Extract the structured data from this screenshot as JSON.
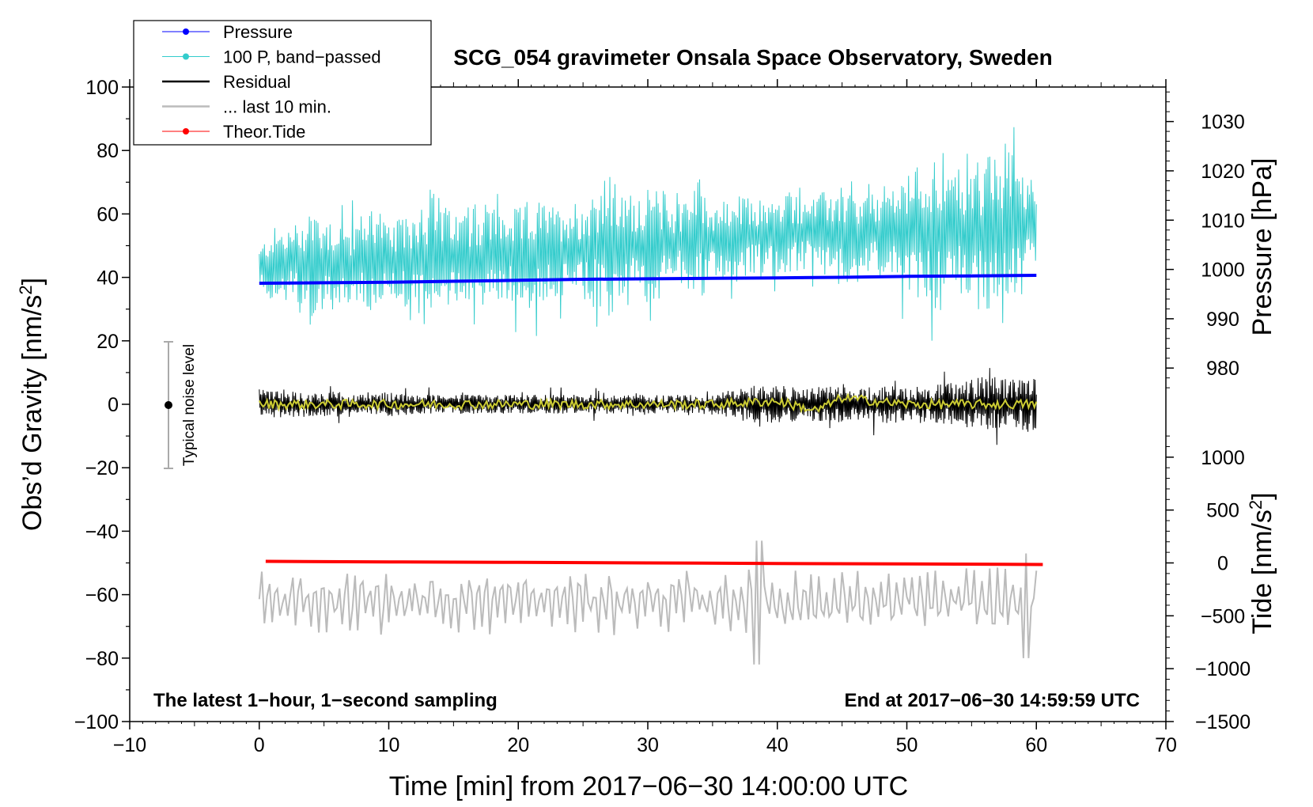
{
  "chart_data": {
    "type": "line",
    "title": "SCG_054 gravimeter Onsala Space Observatory, Sweden",
    "xlabel": "Time [min] from 2017−06−30 14:00:00 UTC",
    "ylabel": "Obs’d Gravity [nm/s",
    "ylabel_sup": "2",
    "ylabel_end": "]",
    "y2label": "Pressure [hPa]",
    "y3label": "Tide [nm/s",
    "y3label_sup": "2",
    "y3label_end": "]",
    "note_left": "The latest 1−hour, 1−second sampling",
    "note_right": "End at 2017−06−30 14:59:59 UTC",
    "noise_label": "Typical noise level",
    "noise_range": [
      -20,
      20
    ],
    "xlim": [
      -10,
      70
    ],
    "ylim": [
      -100,
      100
    ],
    "y2lim": [
      1037,
      908.3
    ],
    "y3lim": [
      -1500,
      4500
    ],
    "x_ticks": [
      -10,
      0,
      10,
      20,
      30,
      40,
      50,
      60,
      70
    ],
    "x_tick_labels": [
      "−10",
      "0",
      "10",
      "20",
      "30",
      "40",
      "50",
      "60",
      "70"
    ],
    "y_ticks": [
      100,
      80,
      60,
      40,
      20,
      0,
      -20,
      -40,
      -60,
      -80,
      -100
    ],
    "y_tick_labels": [
      "100",
      "80",
      "60",
      "40",
      "20",
      "0",
      "−20",
      "−40",
      "−60",
      "−80",
      "−100"
    ],
    "y2_ticks": [
      1030,
      1020,
      1010,
      1000,
      990,
      980
    ],
    "y2_tick_labels": [
      "1030",
      "1020",
      "1010",
      "1000",
      "990",
      "980"
    ],
    "y3_ticks": [
      1000,
      500,
      0,
      -500,
      -1000,
      -1500
    ],
    "y3_tick_labels": [
      "1000",
      "500",
      "0",
      "−500",
      "−1000",
      "−1500"
    ],
    "legend": [
      {
        "label": "Pressure",
        "color": "#0000ff",
        "marker": true
      },
      {
        "label": "100 P, band−passed",
        "color": "#33cccc",
        "marker": true
      },
      {
        "label": "Residual",
        "color": "#000000",
        "marker": false
      },
      {
        "label": "... last 10 min.",
        "color": "#bbbbbb",
        "marker": false
      },
      {
        "label": "Theor.Tide",
        "color": "#ff0000",
        "marker": true
      }
    ],
    "series": [
      {
        "name": "Pressure",
        "axis": "pressure",
        "color": "#0000ff",
        "x": [
          0,
          5,
          10,
          15,
          20,
          25,
          30,
          35,
          40,
          45,
          50,
          55,
          60
        ],
        "y": [
          997.2,
          997.3,
          997.4,
          997.6,
          997.8,
          998.0,
          998.1,
          998.2,
          998.3,
          998.4,
          998.6,
          998.7,
          998.8
        ]
      },
      {
        "name": "100 P, band−passed",
        "axis": "gravity",
        "color": "#33cccc",
        "x": [
          0,
          1,
          2,
          3,
          4,
          5,
          6,
          7,
          8,
          9,
          10,
          11,
          12,
          13,
          14,
          15,
          16,
          17,
          18,
          19,
          20,
          21,
          22,
          23,
          24,
          25,
          26,
          27,
          28,
          29,
          30,
          31,
          32,
          33,
          34,
          35,
          36,
          37,
          38,
          39,
          40,
          41,
          42,
          43,
          44,
          45,
          46,
          47,
          48,
          49,
          50,
          51,
          52,
          53,
          54,
          55,
          56,
          57,
          58,
          59,
          60
        ],
        "center": [
          43,
          44,
          45,
          44,
          43,
          45,
          44,
          44,
          45,
          46,
          44,
          45,
          46,
          45,
          46,
          46,
          47,
          46,
          47,
          47,
          46,
          47,
          48,
          48,
          49,
          48,
          50,
          49,
          50,
          51,
          50,
          51,
          51,
          52,
          52,
          51,
          52,
          52,
          53,
          53,
          53,
          54,
          54,
          54,
          54,
          53,
          53,
          54,
          54,
          55,
          54,
          55,
          55,
          54,
          55,
          54,
          54,
          55,
          55,
          56,
          56
        ],
        "amp": [
          6,
          12,
          10,
          14,
          22,
          14,
          16,
          12,
          16,
          20,
          12,
          14,
          16,
          26,
          18,
          14,
          14,
          16,
          16,
          14,
          16,
          18,
          16,
          14,
          16,
          16,
          20,
          24,
          16,
          16,
          18,
          18,
          12,
          16,
          20,
          14,
          12,
          14,
          12,
          12,
          12,
          14,
          12,
          12,
          14,
          16,
          12,
          12,
          14,
          16,
          18,
          22,
          24,
          18,
          20,
          22,
          26,
          22,
          26,
          24,
          10
        ]
      },
      {
        "name": "Residual",
        "axis": "gravity",
        "color": "#000000",
        "x": [
          0,
          2,
          4,
          6,
          8,
          10,
          12,
          14,
          16,
          18,
          20,
          22,
          24,
          26,
          28,
          30,
          32,
          34,
          36,
          38,
          40,
          42,
          44,
          46,
          48,
          50,
          52,
          54,
          56,
          58,
          60
        ],
        "amp": [
          5,
          4,
          4,
          4,
          3,
          4,
          3,
          3,
          3,
          3,
          3,
          3,
          3,
          3,
          3,
          3,
          3,
          3,
          4,
          6,
          6,
          5,
          6,
          5,
          6,
          6,
          6,
          7,
          9,
          8,
          9
        ]
      },
      {
        "name": "Residual (smoothed)",
        "axis": "gravity",
        "color": "#cccc33",
        "x": [
          0,
          5,
          10,
          15,
          20,
          25,
          30,
          35,
          40,
          43,
          45,
          50,
          55,
          60
        ],
        "y": [
          0,
          0,
          0,
          0,
          0,
          0,
          0,
          0,
          1,
          -2,
          2,
          0,
          0,
          0
        ]
      },
      {
        "name": "... last 10 min.",
        "axis": "gravity",
        "color": "#bbbbbb",
        "x_span": [
          0,
          60
        ],
        "y_center": -62,
        "y_spikes": [
          {
            "x": 38.5,
            "min": -82,
            "max": -43
          },
          {
            "x": 59.2,
            "min": -80,
            "max": -47
          }
        ]
      },
      {
        "name": "Theor.Tide",
        "axis": "tide",
        "color": "#ff0000",
        "x": [
          0.5,
          10,
          20,
          30,
          40,
          50,
          60.5
        ],
        "y": [
          15,
          10,
          5,
          0,
          -5,
          -10,
          -15
        ]
      }
    ]
  }
}
